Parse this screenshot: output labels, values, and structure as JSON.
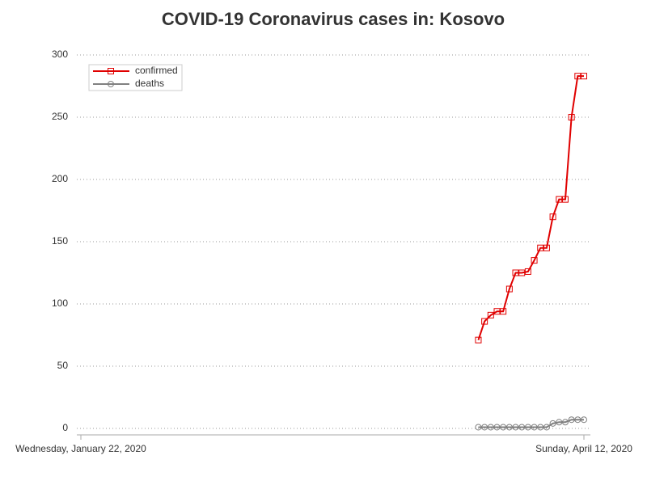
{
  "chart_data": {
    "type": "line",
    "title": "COVID-19 Coronavirus cases in: Kosovo",
    "x": [
      "2020-03-26",
      "2020-03-27",
      "2020-03-28",
      "2020-03-29",
      "2020-03-30",
      "2020-03-31",
      "2020-04-01",
      "2020-04-02",
      "2020-04-03",
      "2020-04-04",
      "2020-04-05",
      "2020-04-06",
      "2020-04-07",
      "2020-04-08",
      "2020-04-09",
      "2020-04-10",
      "2020-04-11",
      "2020-04-12"
    ],
    "series": [
      {
        "name": "confirmed",
        "color": "#e00000",
        "marker": "square",
        "values": [
          71,
          86,
          91,
          94,
          94,
          112,
          125,
          125,
          126,
          135,
          145,
          145,
          170,
          184,
          184,
          250,
          283,
          283
        ]
      },
      {
        "name": "deaths",
        "color": "#808080",
        "marker": "circle",
        "values": [
          1,
          1,
          1,
          1,
          1,
          1,
          1,
          1,
          1,
          1,
          1,
          1,
          4,
          5,
          5,
          7,
          7,
          7
        ]
      }
    ],
    "xlim": [
      "2020-01-22",
      "2020-04-12"
    ],
    "xticks": [
      {
        "value": "2020-01-22",
        "label": "Wednesday, January 22, 2020"
      },
      {
        "value": "2020-04-12",
        "label": "Sunday, April 12, 2020"
      }
    ],
    "ylim": [
      -5,
      305
    ],
    "yticks": [
      0,
      50,
      100,
      150,
      200,
      250,
      300
    ],
    "grid": true,
    "legend": "top-left"
  }
}
